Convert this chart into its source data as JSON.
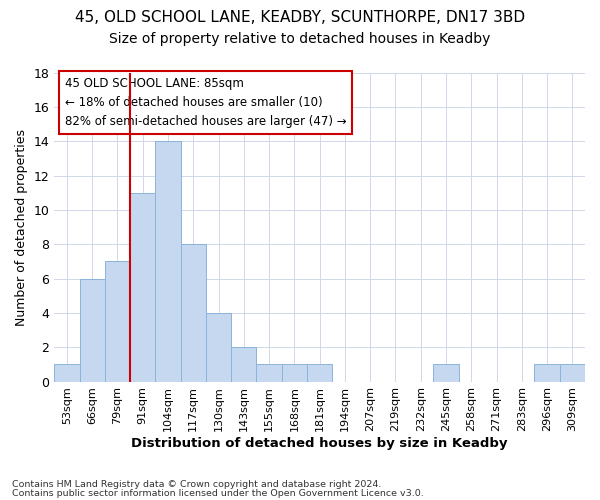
{
  "title1": "45, OLD SCHOOL LANE, KEADBY, SCUNTHORPE, DN17 3BD",
  "title2": "Size of property relative to detached houses in Keadby",
  "xlabel": "Distribution of detached houses by size in Keadby",
  "ylabel": "Number of detached properties",
  "bins": [
    "53sqm",
    "66sqm",
    "79sqm",
    "91sqm",
    "104sqm",
    "117sqm",
    "130sqm",
    "143sqm",
    "155sqm",
    "168sqm",
    "181sqm",
    "194sqm",
    "207sqm",
    "219sqm",
    "232sqm",
    "245sqm",
    "258sqm",
    "271sqm",
    "283sqm",
    "296sqm",
    "309sqm"
  ],
  "values": [
    1,
    6,
    7,
    11,
    14,
    8,
    4,
    2,
    1,
    1,
    1,
    0,
    0,
    0,
    0,
    1,
    0,
    0,
    0,
    1,
    1
  ],
  "bar_color": "#c5d8f0",
  "bar_edge_color": "#8ab4d8",
  "vline_x": 3.5,
  "annotation_text1": "45 OLD SCHOOL LANE: 85sqm",
  "annotation_text2": "← 18% of detached houses are smaller (10)",
  "annotation_text3": "82% of semi-detached houses are larger (47) →",
  "annotation_box_color": "white",
  "annotation_box_edge_color": "#cc0000",
  "vline_color": "#cc0000",
  "grid_color": "#d0d8e8",
  "footer1": "Contains HM Land Registry data © Crown copyright and database right 2024.",
  "footer2": "Contains public sector information licensed under the Open Government Licence v3.0.",
  "ylim": [
    0,
    18
  ],
  "yticks": [
    0,
    2,
    4,
    6,
    8,
    10,
    12,
    14,
    16,
    18
  ],
  "background_color": "#ffffff",
  "title1_fontsize": 11,
  "title2_fontsize": 10
}
